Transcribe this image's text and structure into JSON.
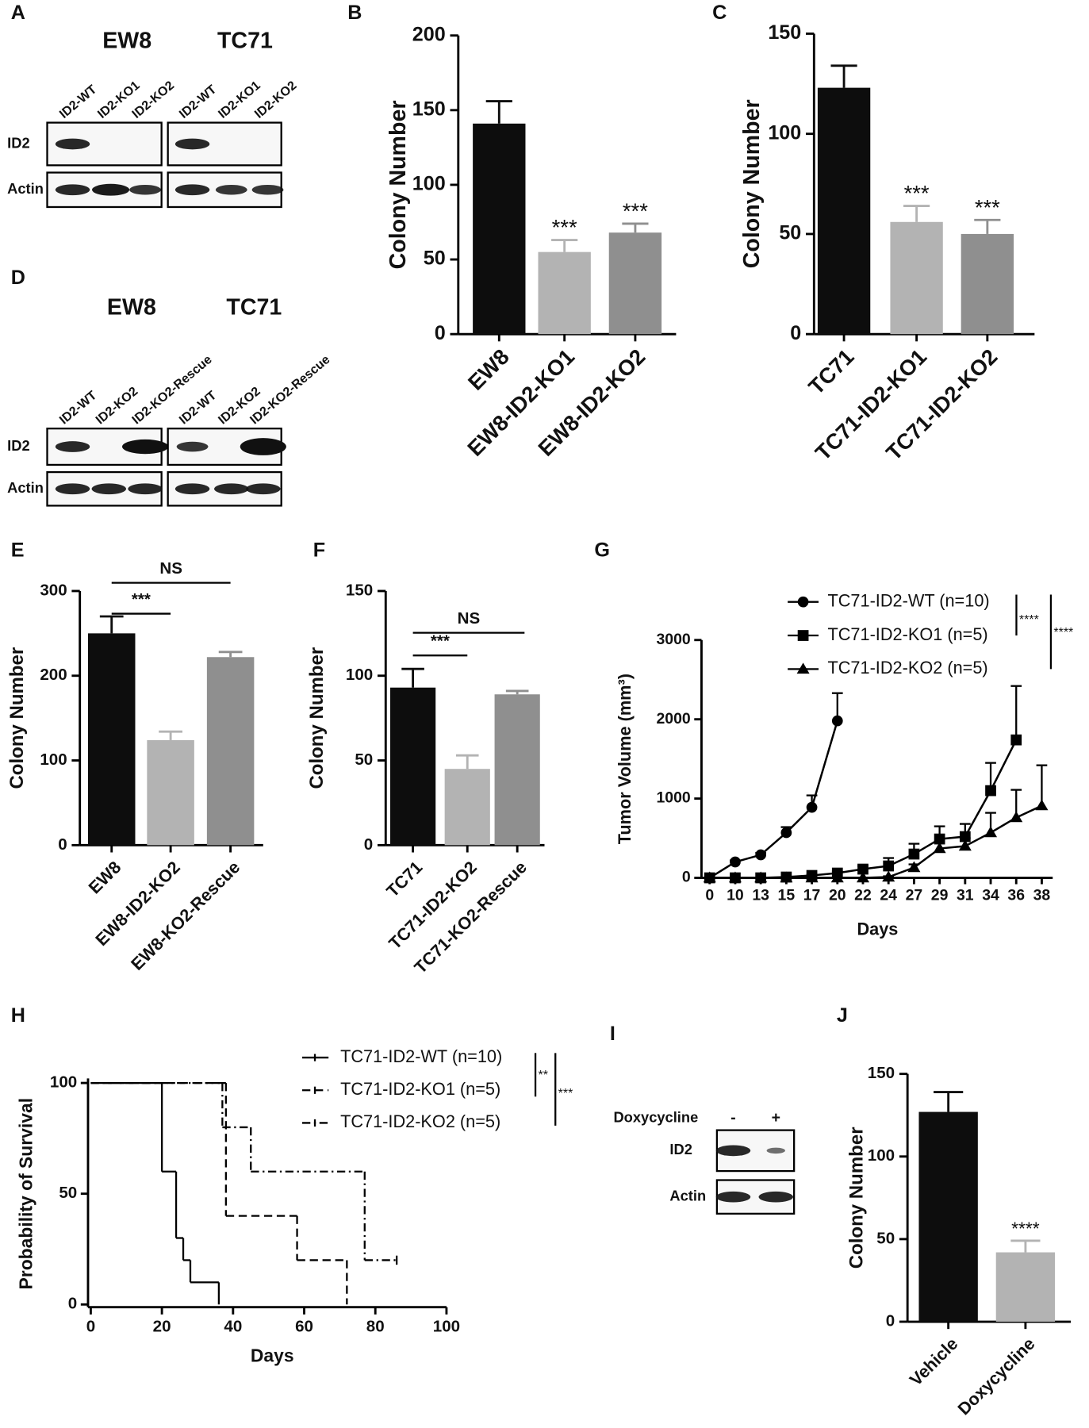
{
  "chart_data": [
    {
      "type": "bar",
      "panel": "B",
      "ylabel": "Colony Number",
      "categories": [
        "EW8",
        "EW8-ID2-KO1",
        "EW8-ID2-KO2"
      ],
      "values": [
        141,
        55,
        68
      ],
      "errors": [
        15,
        8,
        6
      ],
      "sig": [
        null,
        "***",
        "***"
      ],
      "colors": [
        "#0d0d0d",
        "#b3b3b3",
        "#8f8f8f"
      ],
      "ylim": [
        0,
        200
      ],
      "yticks": [
        0,
        50,
        100,
        150,
        200
      ]
    },
    {
      "type": "bar",
      "panel": "C",
      "ylabel": "Colony Number",
      "categories": [
        "TC71",
        "TC71-ID2-KO1",
        "TC71-ID2-KO2"
      ],
      "values": [
        123,
        56,
        50
      ],
      "errors": [
        11,
        8,
        7
      ],
      "sig": [
        null,
        "***",
        "***"
      ],
      "colors": [
        "#0d0d0d",
        "#b3b3b3",
        "#8f8f8f"
      ],
      "ylim": [
        0,
        150
      ],
      "yticks": [
        0,
        50,
        100,
        150
      ]
    },
    {
      "type": "bar",
      "panel": "E",
      "ylabel": "Colony Number",
      "categories": [
        "EW8",
        "EW8-ID2-KO2",
        "EW8-KO2-Rescue"
      ],
      "values": [
        250,
        124,
        222
      ],
      "errors": [
        20,
        10,
        6
      ],
      "brackets": [
        "***",
        "NS"
      ],
      "colors": [
        "#0d0d0d",
        "#b3b3b3",
        "#8f8f8f"
      ],
      "ylim": [
        0,
        300
      ],
      "yticks": [
        0,
        100,
        200,
        300
      ]
    },
    {
      "type": "bar",
      "panel": "F",
      "ylabel": "Colony Number",
      "categories": [
        "TC71",
        "TC71-ID2-KO2",
        "TC71-KO2-Rescue"
      ],
      "values": [
        93,
        45,
        89
      ],
      "errors": [
        11,
        8,
        2
      ],
      "brackets": [
        "***",
        "NS"
      ],
      "colors": [
        "#0d0d0d",
        "#b3b3b3",
        "#8f8f8f"
      ],
      "ylim": [
        0,
        150
      ],
      "yticks": [
        0,
        50,
        100,
        150
      ]
    },
    {
      "type": "line",
      "panel": "G",
      "ylabel": "Tumor Volume (mm³)",
      "xlabel": "Days",
      "categories": [
        "0",
        "10",
        "13",
        "15",
        "17",
        "20",
        "22",
        "24",
        "27",
        "29",
        "31",
        "34",
        "36",
        "38"
      ],
      "series": [
        {
          "name": "TC71-ID2-WT (n=10)",
          "marker": "circle",
          "color": "#000000",
          "values": [
            0,
            200,
            290,
            570,
            890,
            1980,
            null,
            null,
            null,
            null,
            null,
            null,
            null,
            null
          ],
          "errors": [
            0,
            20,
            25,
            70,
            150,
            350,
            null,
            null,
            null,
            null,
            null,
            null,
            null,
            null
          ]
        },
        {
          "name": "TC71-ID2-KO1 (n=5)",
          "marker": "square",
          "color": "#000000",
          "values": [
            0,
            0,
            0,
            10,
            30,
            60,
            110,
            150,
            300,
            490,
            520,
            1100,
            1740,
            null
          ],
          "errors": [
            0,
            0,
            0,
            5,
            10,
            20,
            40,
            100,
            130,
            160,
            160,
            350,
            680,
            null
          ]
        },
        {
          "name": "TC71-ID2-KO2 (n=5)",
          "marker": "triangle",
          "color": "#000000",
          "values": [
            0,
            0,
            0,
            0,
            0,
            0,
            0,
            10,
            130,
            370,
            400,
            570,
            760,
            910
          ],
          "errors": [
            0,
            0,
            0,
            0,
            0,
            0,
            0,
            10,
            40,
            90,
            100,
            250,
            350,
            510
          ]
        }
      ],
      "sig": [
        "****",
        "****"
      ],
      "ylim": [
        0,
        3000
      ],
      "yticks": [
        0,
        1000,
        2000,
        3000
      ]
    },
    {
      "type": "survival",
      "panel": "H",
      "ylabel": "Probability of Survival",
      "xlabel": "Days",
      "series": [
        {
          "name": "TC71-ID2-WT (n=10)",
          "dash": "solid",
          "color": "#000000",
          "x": [
            0,
            20,
            24,
            26,
            28,
            36
          ],
          "values": [
            100,
            60,
            30,
            20,
            10,
            0
          ]
        },
        {
          "name": "TC71-ID2-KO1 (n=5)",
          "dash": "dashed",
          "color": "#000000",
          "x": [
            0,
            38,
            58,
            72
          ],
          "values": [
            100,
            40,
            20,
            0
          ]
        },
        {
          "name": "TC71-ID2-KO2 (n=5)",
          "dash": "dashdot",
          "color": "#000000",
          "x": [
            0,
            37,
            45,
            77,
            86
          ],
          "values": [
            100,
            80,
            60,
            20,
            20
          ]
        }
      ],
      "sig": [
        "**",
        "***"
      ],
      "xlim": [
        0,
        100
      ],
      "xticks": [
        0,
        20,
        40,
        60,
        80,
        100
      ],
      "ylim": [
        0,
        100
      ],
      "yticks": [
        0,
        50,
        100
      ]
    },
    {
      "type": "bar",
      "panel": "J",
      "ylabel": "Colony Number",
      "categories": [
        "Vehicle",
        "Doxycycline"
      ],
      "values": [
        127,
        42
      ],
      "errors": [
        12,
        7
      ],
      "sig": [
        null,
        "****"
      ],
      "colors": [
        "#0d0d0d",
        "#b3b3b3"
      ],
      "ylim": [
        0,
        150
      ],
      "yticks": [
        0,
        50,
        100,
        150
      ]
    }
  ],
  "blots": [
    {
      "panel": "A",
      "titles": [
        "EW8",
        "TC71"
      ],
      "lanes": [
        [
          "ID2-WT",
          "ID2-KO1",
          "ID2-KO2"
        ],
        [
          "ID2-WT",
          "ID2-KO1",
          "ID2-KO2"
        ]
      ],
      "rows": [
        "ID2",
        "Actin"
      ]
    },
    {
      "panel": "D",
      "titles": [
        "EW8",
        "TC71"
      ],
      "lanes": [
        [
          "ID2-WT",
          "ID2-KO2",
          "ID2-KO2-Rescue"
        ],
        [
          "ID2-WT",
          "ID2-KO2",
          "ID2-KO2-Rescue"
        ]
      ],
      "rows": [
        "ID2",
        "Actin"
      ]
    },
    {
      "panel": "I",
      "titles": [
        "Doxycycline"
      ],
      "lanes": [
        [
          "-",
          "+"
        ]
      ],
      "rows": [
        "ID2",
        "Actin"
      ]
    }
  ]
}
